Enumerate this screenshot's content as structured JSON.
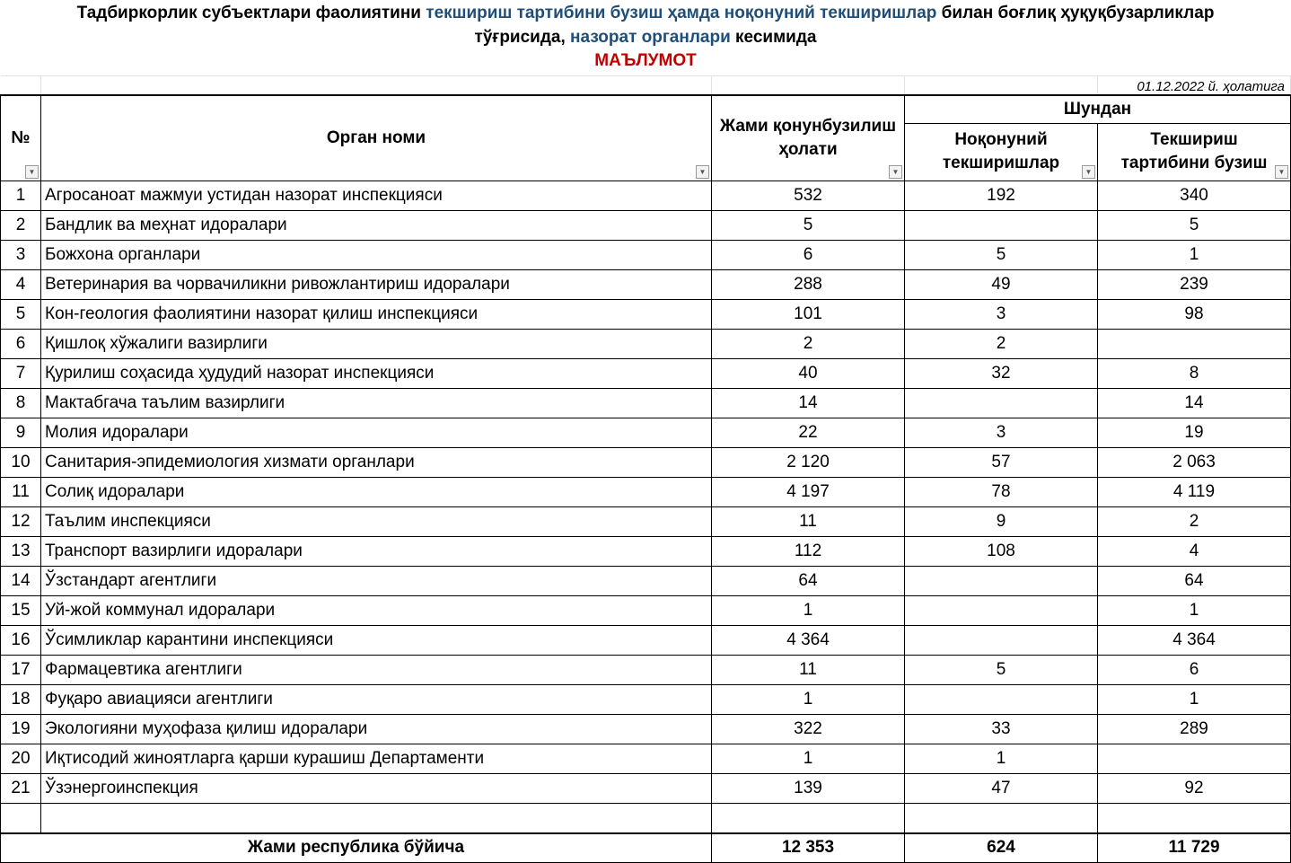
{
  "title": {
    "line1_a": "Тадбиркорлик субъектлари фаолиятини ",
    "line1_b": "текшириш тартибини бузиш ҳамда ноқонуний текширишлар",
    "line1_c": " билан боғлиқ ҳуқуқбузарликлар",
    "line2_a": "тўғрисида, ",
    "line2_b": "назорат органлари",
    "line2_c": " кесимида",
    "line3": "МАЪЛУМОТ"
  },
  "date": "01.12.2022 й. ҳолатига",
  "headers": {
    "no": "№",
    "name": "Орган номи",
    "total": "Жами қонунбузилиш ҳолати",
    "group": "Шундан",
    "illegal": "Ноқонуний текширишлар",
    "violation": "Текшириш тартибини бузиш"
  },
  "rows": [
    {
      "no": "1",
      "name": "Агросаноат мажмуи устидан назорат инспекцияси",
      "total": "532",
      "illegal": "192",
      "violation": "340"
    },
    {
      "no": "2",
      "name": "Бандлик ва меҳнат идоралари",
      "total": "5",
      "illegal": "",
      "violation": "5"
    },
    {
      "no": "3",
      "name": "Божхона органлари",
      "total": "6",
      "illegal": "5",
      "violation": "1"
    },
    {
      "no": "4",
      "name": "Ветеринария ва чорвачиликни ривожлантириш идоралари",
      "total": "288",
      "illegal": "49",
      "violation": "239"
    },
    {
      "no": "5",
      "name": "Кон-геология фаолиятини назорат қилиш инспекцияси",
      "total": "101",
      "illegal": "3",
      "violation": "98"
    },
    {
      "no": "6",
      "name": "Қишлоқ хўжалиги вазирлиги",
      "total": "2",
      "illegal": "2",
      "violation": ""
    },
    {
      "no": "7",
      "name": "Қурилиш соҳасида ҳудудий назорат инспекцияси",
      "total": "40",
      "illegal": "32",
      "violation": "8"
    },
    {
      "no": "8",
      "name": "Мактабгача таълим вазирлиги",
      "total": "14",
      "illegal": "",
      "violation": "14"
    },
    {
      "no": "9",
      "name": "Молия идоралари",
      "total": "22",
      "illegal": "3",
      "violation": "19"
    },
    {
      "no": "10",
      "name": "Санитария-эпидемиология хизмати органлари",
      "total": "2 120",
      "illegal": "57",
      "violation": "2 063"
    },
    {
      "no": "11",
      "name": "Солиқ идоралари",
      "total": "4 197",
      "illegal": "78",
      "violation": "4 119"
    },
    {
      "no": "12",
      "name": "Таълим инспекцияси",
      "total": "11",
      "illegal": "9",
      "violation": "2"
    },
    {
      "no": "13",
      "name": "Транспорт вазирлиги идоралари",
      "total": "112",
      "illegal": "108",
      "violation": "4"
    },
    {
      "no": "14",
      "name": "Ўзстандарт агентлиги",
      "total": "64",
      "illegal": "",
      "violation": "64"
    },
    {
      "no": "15",
      "name": "Уй-жой коммунал идоралари",
      "total": "1",
      "illegal": "",
      "violation": "1"
    },
    {
      "no": "16",
      "name": "Ўсимликлар карантини инспекцияси",
      "total": "4 364",
      "illegal": "",
      "violation": "4 364"
    },
    {
      "no": "17",
      "name": "Фармацевтика агентлиги",
      "total": "11",
      "illegal": "5",
      "violation": "6"
    },
    {
      "no": "18",
      "name": "Фуқаро авиацияси агентлиги",
      "total": "1",
      "illegal": "",
      "violation": "1"
    },
    {
      "no": "19",
      "name": "Экологияни муҳофаза қилиш идоралари",
      "total": "322",
      "illegal": "33",
      "violation": "289"
    },
    {
      "no": "20",
      "name": "Иқтисодий жиноятларга қарши курашиш Департаменти",
      "total": "1",
      "illegal": "1",
      "violation": ""
    },
    {
      "no": "21",
      "name": "Ўзэнергоинспекция",
      "total": "139",
      "illegal": "47",
      "violation": "92"
    }
  ],
  "totals": {
    "label": "Жами республика бўйича",
    "total": "12 353",
    "illegal": "624",
    "violation": "11 729"
  },
  "colors": {
    "blue_text": "#1f4e79",
    "red_text": "#c00000"
  },
  "filter_icon": "dropdown-arrow-icon"
}
